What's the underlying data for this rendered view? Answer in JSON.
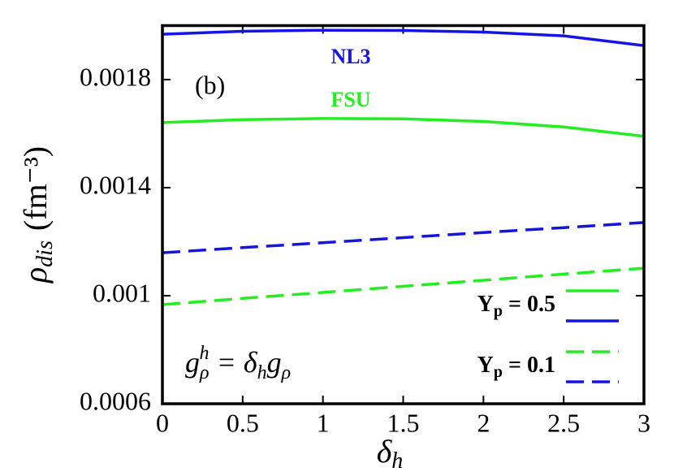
{
  "chart_data": {
    "type": "line",
    "x": [
      0,
      0.5,
      1,
      1.5,
      2,
      2.5,
      3
    ],
    "series": [
      {
        "color": "#1414e6",
        "dashed": false,
        "values": [
          0.001968,
          0.001979,
          0.001983,
          0.001982,
          0.001976,
          0.001962,
          0.001926
        ]
      },
      {
        "color": "#22ee22",
        "dashed": false,
        "values": [
          0.001641,
          0.001652,
          0.001656,
          0.001655,
          0.001645,
          0.001625,
          0.00159
        ]
      },
      {
        "color": "#1414e6",
        "dashed": true,
        "values": [
          0.001159,
          0.001178,
          0.001196,
          0.001215,
          0.001234,
          0.001252,
          0.001271
        ]
      },
      {
        "color": "#22ee22",
        "dashed": true,
        "values": [
          0.000967,
          0.00099,
          0.001012,
          0.001035,
          0.001057,
          0.00108,
          0.001102
        ]
      }
    ],
    "xlim": [
      0,
      3
    ],
    "ylim": [
      0.0006,
      0.002
    ],
    "xticks": [
      0,
      0.5,
      1,
      1.5,
      2,
      2.5,
      3
    ],
    "yticks": [
      0.0006,
      0.001,
      0.0014,
      0.0018
    ],
    "xlabel": {
      "symbol": "δ",
      "subscript": "h"
    },
    "ylabel": {
      "symbol": "ρ",
      "subscript": "dis",
      "unit": "(fm⁻³)"
    },
    "annotations": {
      "panel": "(b)",
      "nl3": "NL3",
      "fsu": "FSU",
      "formula": [
        {
          "text": "g"
        },
        {
          "text": "ρ",
          "sub": true
        },
        {
          "text": "h",
          "sup": true
        },
        {
          "text": " = δ"
        },
        {
          "text": "h",
          "sub": true
        },
        {
          "text": "g"
        },
        {
          "text": "ρ",
          "sub": true
        }
      ]
    },
    "legend": [
      {
        "symbol": "Y",
        "subscript": "p",
        "text": " = 0.5",
        "dashed": false,
        "colors": [
          "#22ee22",
          "#1414e6"
        ]
      },
      {
        "symbol": "Y",
        "subscript": "p",
        "text": " = 0.1",
        "dashed": true,
        "colors": [
          "#22ee22",
          "#1414e6"
        ]
      }
    ]
  }
}
